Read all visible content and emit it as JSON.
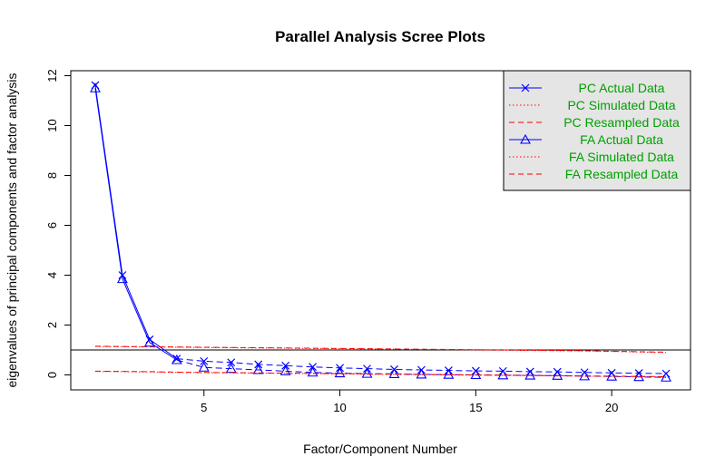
{
  "chart_data": {
    "type": "line",
    "title": "Parallel Analysis Scree Plots",
    "xlabel": "Factor/Component Number",
    "ylabel": "eigenvalues of principal components and factor analysis",
    "xlim": [
      0.1,
      22.9
    ],
    "ylim": [
      -0.6,
      12.2
    ],
    "x_ticks": [
      "5",
      "10",
      "15",
      "20"
    ],
    "y_ticks": [
      "0",
      "2",
      "4",
      "6",
      "8",
      "10",
      "12"
    ],
    "reference_line_y": 1,
    "legend_position": "top-right",
    "x": [
      1,
      2,
      3,
      4,
      5,
      6,
      7,
      8,
      9,
      10,
      11,
      12,
      13,
      14,
      15,
      16,
      17,
      18,
      19,
      20,
      21,
      22
    ],
    "series": [
      {
        "name": "PC  Actual Data",
        "color": "#0000ff",
        "style": "solid-first-then-dashed",
        "marker": "x",
        "values": [
          11.62,
          4.0,
          1.42,
          0.65,
          0.55,
          0.5,
          0.42,
          0.37,
          0.32,
          0.28,
          0.25,
          0.22,
          0.2,
          0.18,
          0.16,
          0.15,
          0.13,
          0.12,
          0.1,
          0.08,
          0.07,
          0.05
        ]
      },
      {
        "name": "PC  Simulated Data",
        "color": "#ff0000",
        "style": "dotted",
        "marker": "none",
        "values": [
          1.14,
          1.13,
          1.12,
          1.11,
          1.1,
          1.09,
          1.08,
          1.07,
          1.06,
          1.05,
          1.04,
          1.03,
          1.02,
          1.01,
          1.0,
          0.99,
          0.98,
          0.97,
          0.96,
          0.94,
          0.92,
          0.9
        ]
      },
      {
        "name": "PC  Resampled Data",
        "color": "#ff0000",
        "style": "dashed",
        "marker": "none",
        "values": [
          1.15,
          1.14,
          1.13,
          1.12,
          1.11,
          1.1,
          1.09,
          1.08,
          1.07,
          1.06,
          1.05,
          1.04,
          1.03,
          1.02,
          1.01,
          1.0,
          0.99,
          0.98,
          0.97,
          0.95,
          0.93,
          0.91
        ]
      },
      {
        "name": "FA  Actual Data",
        "color": "#0000ff",
        "style": "solid-first-then-dashed",
        "marker": "triangle",
        "values": [
          11.5,
          3.85,
          1.3,
          0.6,
          0.3,
          0.25,
          0.2,
          0.15,
          0.1,
          0.07,
          0.05,
          0.04,
          0.02,
          0.01,
          0.0,
          -0.01,
          -0.02,
          -0.03,
          -0.05,
          -0.06,
          -0.08,
          -0.1
        ]
      },
      {
        "name": "FA  Simulated Data",
        "color": "#ff0000",
        "style": "dotted",
        "marker": "none",
        "values": [
          0.14,
          0.13,
          0.12,
          0.1,
          0.09,
          0.08,
          0.07,
          0.06,
          0.05,
          0.04,
          0.03,
          0.02,
          0.01,
          0.0,
          -0.01,
          -0.02,
          -0.03,
          -0.04,
          -0.05,
          -0.06,
          -0.07,
          -0.08
        ]
      },
      {
        "name": "FA  Resampled Data",
        "color": "#ff0000",
        "style": "dashed",
        "marker": "none",
        "values": [
          0.15,
          0.14,
          0.13,
          0.11,
          0.1,
          0.09,
          0.08,
          0.07,
          0.06,
          0.05,
          0.04,
          0.03,
          0.02,
          0.01,
          0.0,
          -0.01,
          -0.02,
          -0.03,
          -0.04,
          -0.05,
          -0.06,
          -0.07
        ]
      }
    ]
  },
  "colors": {
    "legend_bg": "#e5e5e5",
    "legend_text": "#00a000",
    "plot_bg": "#ffffff"
  }
}
